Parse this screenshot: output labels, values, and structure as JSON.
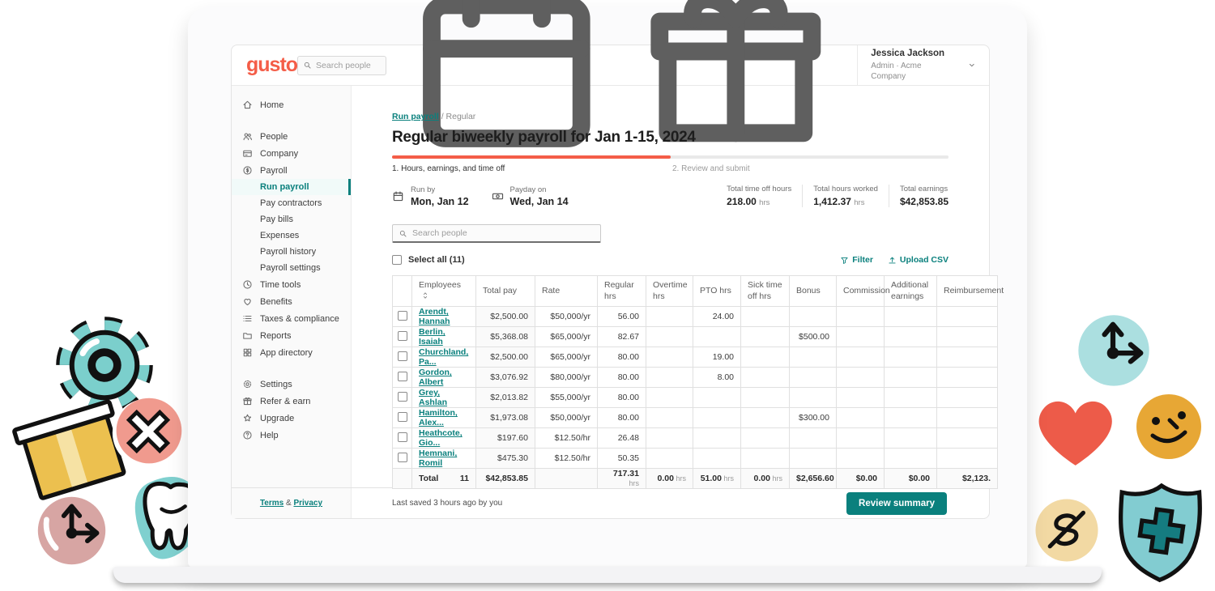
{
  "colors": {
    "coral": "#f45d48",
    "teal": "#0a807d"
  },
  "header": {
    "logo": "gusto",
    "search_placeholder": "Search people",
    "user_name": "Jessica Jackson",
    "user_role": "Admin · Acme Company"
  },
  "sidebar": {
    "items": [
      {
        "icon": "home",
        "label": "Home"
      },
      {
        "gap": true
      },
      {
        "icon": "people",
        "label": "People"
      },
      {
        "icon": "company",
        "label": "Company"
      },
      {
        "icon": "payroll",
        "label": "Payroll"
      },
      {
        "label": "Run payroll",
        "indent": true,
        "active": true
      },
      {
        "label": "Pay contractors",
        "indent": true
      },
      {
        "label": "Pay bills",
        "indent": true
      },
      {
        "label": "Expenses",
        "indent": true
      },
      {
        "label": "Payroll history",
        "indent": true
      },
      {
        "label": "Payroll settings",
        "indent": true
      },
      {
        "icon": "clock",
        "label": "Time tools"
      },
      {
        "icon": "heart",
        "label": "Benefits"
      },
      {
        "icon": "list",
        "label": "Taxes & compliance"
      },
      {
        "icon": "folder",
        "label": "Reports"
      },
      {
        "icon": "grid",
        "label": "App directory"
      },
      {
        "gap": true
      },
      {
        "icon": "gear",
        "label": "Settings"
      },
      {
        "icon": "gift",
        "label": "Refer & earn"
      },
      {
        "icon": "star",
        "label": "Upgrade"
      },
      {
        "icon": "question",
        "label": "Help"
      }
    ],
    "terms": "Terms",
    "amp": "&",
    "privacy": "Privacy"
  },
  "breadcrumb": {
    "link": "Run payroll",
    "sep": "/",
    "current": "Regular"
  },
  "page": {
    "title": "Regular biweekly payroll for Jan 1-15, 2024"
  },
  "steps": [
    {
      "label": "1. Hours, earnings, and time off"
    },
    {
      "label": "2. Review and submit"
    }
  ],
  "meta": [
    {
      "icon": "calendar",
      "label": "Run by",
      "value": "Mon, Jan 12"
    },
    {
      "icon": "banknote",
      "label": "Payday on",
      "value": "Wed, Jan 14"
    }
  ],
  "stats": [
    {
      "label": "Total time off hours",
      "value": "218.00",
      "unit": "hrs"
    },
    {
      "label": "Total hours worked",
      "value": "1,412.37",
      "unit": "hrs"
    },
    {
      "label": "Total earnings",
      "value": "$42,853.85",
      "unit": ""
    }
  ],
  "toolbar": {
    "search_placeholder": "Search people",
    "select_all": "Select all (11)",
    "filter": "Filter",
    "upload": "Upload CSV"
  },
  "table": {
    "columns": [
      "Employees",
      "Total pay",
      "Rate",
      "Regular hrs",
      "Overtime hrs",
      "PTO hrs",
      "Sick time off hrs",
      "Bonus",
      "Commission",
      "Additional earnings",
      "Reimbursement"
    ],
    "rows": [
      [
        "Arendt, Hannah",
        "$2,500.00",
        "$50,000/yr",
        "56.00",
        "",
        "24.00",
        "",
        "",
        "",
        "",
        ""
      ],
      [
        "Berlin, Isaiah",
        "$5,368.08",
        "$65,000/yr",
        "82.67",
        "",
        "",
        "",
        "$500.00",
        "",
        "",
        ""
      ],
      [
        "Churchland, Pa...",
        "$2,500.00",
        "$65,000/yr",
        "80.00",
        "",
        "19.00",
        "",
        "",
        "",
        "",
        ""
      ],
      [
        "Gordon, Albert",
        "$3,076.92",
        "$80,000/yr",
        "80.00",
        "",
        "8.00",
        "",
        "",
        "",
        "",
        ""
      ],
      [
        "Grey, Ashlan",
        "$2,013.82",
        "$55,000/yr",
        "80.00",
        "",
        "",
        "",
        "",
        "",
        "",
        ""
      ],
      [
        "Hamilton, Alex...",
        "$1,973.08",
        "$50,000/yr",
        "80.00",
        "",
        "",
        "",
        "$300.00",
        "",
        "",
        ""
      ],
      [
        "Heathcote, Gio...",
        "$197.60",
        "$12.50/hr",
        "26.48",
        "",
        "",
        "",
        "",
        "",
        "",
        ""
      ],
      [
        "Hemnani, Romil",
        "$475.30",
        "$12.50/hr",
        "50.35",
        "",
        "",
        "",
        "",
        "",
        "",
        ""
      ]
    ],
    "total": {
      "label": "Total",
      "count": "11",
      "cells": [
        {
          "v": "$42,853.85"
        },
        {
          "v": ""
        },
        {
          "v": "717.31",
          "u": "hrs"
        },
        {
          "v": "0.00",
          "u": "hrs"
        },
        {
          "v": "51.00",
          "u": "hrs"
        },
        {
          "v": "0.00",
          "u": "hrs"
        },
        {
          "v": "$2,656.60"
        },
        {
          "v": "$0.00"
        },
        {
          "v": "$0.00"
        },
        {
          "v": "$2,123."
        }
      ]
    }
  },
  "footer": {
    "last_saved": "Last saved 3 hours ago by you",
    "review_button": "Review summary"
  },
  "decorations": [
    "gear",
    "package-box",
    "cross-circle",
    "tooth",
    "time-arrows-pink",
    "time-arrows-teal",
    "heart",
    "smiley",
    "no-cost-dollar",
    "shield-plus"
  ]
}
